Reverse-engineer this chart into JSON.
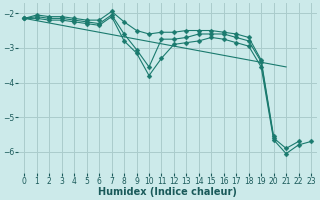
{
  "xlabel": "Humidex (Indice chaleur)",
  "bg_color": "#cceaea",
  "grid_color": "#aacccc",
  "line_color": "#1a7a6e",
  "xlim": [
    -0.5,
    23.5
  ],
  "ylim": [
    -6.6,
    -1.7
  ],
  "yticks": [
    -2,
    -3,
    -4,
    -5,
    -6
  ],
  "xticks": [
    0,
    1,
    2,
    3,
    4,
    5,
    6,
    7,
    8,
    9,
    10,
    11,
    12,
    13,
    14,
    15,
    16,
    17,
    18,
    19,
    20,
    21,
    22,
    23
  ],
  "lines": [
    {
      "x": [
        0,
        1,
        2,
        3,
        4,
        5,
        6,
        7,
        8,
        9,
        10,
        11,
        12,
        13,
        14,
        15,
        16,
        17,
        18,
        19,
        20
      ],
      "y": [
        -2.15,
        -2.05,
        -2.1,
        -2.1,
        -2.15,
        -2.2,
        -2.2,
        -1.95,
        -2.25,
        -2.5,
        -2.6,
        -2.55,
        -2.55,
        -2.5,
        -2.5,
        -2.5,
        -2.55,
        -2.6,
        -2.7,
        -3.35,
        -5.55
      ]
    },
    {
      "x": [
        0,
        1,
        2,
        3,
        4,
        5,
        6,
        7,
        8,
        9,
        10,
        11,
        12,
        13,
        14,
        15,
        16,
        17,
        18,
        19,
        20,
        21,
        22
      ],
      "y": [
        -2.15,
        -2.1,
        -2.15,
        -2.15,
        -2.2,
        -2.25,
        -2.3,
        -2.05,
        -2.6,
        -3.05,
        -3.55,
        -2.75,
        -2.75,
        -2.7,
        -2.6,
        -2.6,
        -2.6,
        -2.7,
        -2.8,
        -3.4,
        -5.6,
        -5.9,
        -5.7
      ]
    },
    {
      "x": [
        0,
        1,
        2,
        3,
        4,
        5,
        6,
        7,
        8,
        9,
        10,
        11,
        12,
        13,
        14,
        15,
        16,
        17,
        18,
        19,
        20,
        21,
        22,
        23
      ],
      "y": [
        -2.15,
        -2.15,
        -2.2,
        -2.2,
        -2.25,
        -2.3,
        -2.35,
        -2.1,
        -2.8,
        -3.15,
        -3.8,
        -3.3,
        -2.9,
        -2.85,
        -2.8,
        -2.7,
        -2.75,
        -2.85,
        -2.95,
        -3.55,
        -5.65,
        -6.05,
        -5.8,
        -5.7
      ]
    },
    {
      "x": [
        0,
        21
      ],
      "y": [
        -2.15,
        -3.55
      ]
    }
  ],
  "markers": "D",
  "markersize": 2.5
}
